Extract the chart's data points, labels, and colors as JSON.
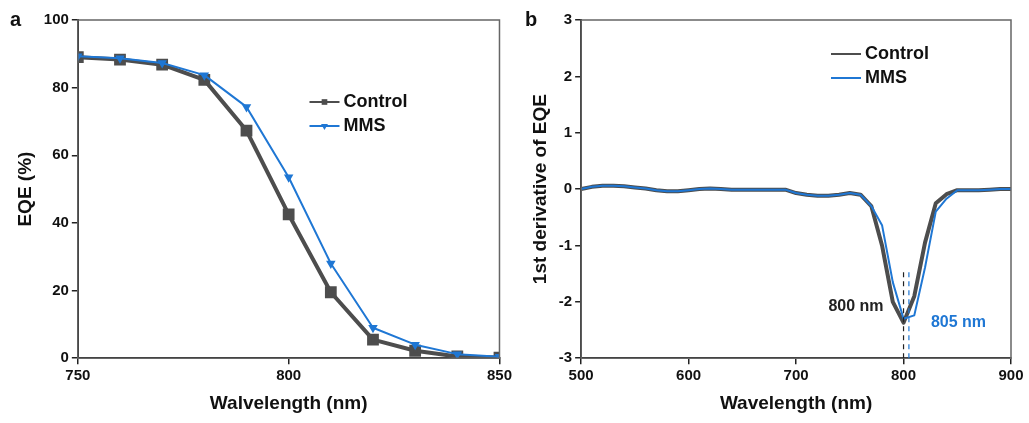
{
  "chart_data": [
    {
      "type": "line",
      "xlabel": "Walvelength (nm)",
      "ylabel": "EQE (%)",
      "annotations": [
        "a"
      ],
      "x": [
        750,
        760,
        770,
        780,
        790,
        800,
        810,
        820,
        830,
        840,
        850
      ],
      "series": [
        {
          "name": "Control",
          "color": "#4d4d4d",
          "marker": "square",
          "values": [
            89,
            88.3,
            86.8,
            82.3,
            67.3,
            42.5,
            19.5,
            5.5,
            2.2,
            0.5,
            0.2
          ]
        },
        {
          "name": "MMS",
          "color": "#1f77d4",
          "marker": "triangle",
          "values": [
            89.3,
            88.7,
            87.3,
            83.7,
            74.3,
            53.5,
            28,
            9,
            4,
            1.2,
            0.4
          ]
        }
      ],
      "xlim": [
        750,
        850
      ],
      "xticks": [
        750,
        800,
        850
      ],
      "ylim": [
        0,
        100
      ],
      "yticks": [
        0,
        20,
        40,
        60,
        80,
        100
      ],
      "grid": false,
      "legend": "top right"
    },
    {
      "type": "line",
      "xlabel": "Wavelength (nm)",
      "ylabel": "1st derivative of EQE",
      "annotations": [
        "b"
      ],
      "x": [
        500,
        510,
        520,
        530,
        540,
        550,
        560,
        570,
        580,
        590,
        600,
        610,
        620,
        630,
        640,
        650,
        660,
        670,
        680,
        690,
        700,
        710,
        720,
        730,
        740,
        750,
        760,
        770,
        780,
        790,
        800,
        810,
        820,
        830,
        840,
        850,
        860,
        870,
        880,
        890,
        900
      ],
      "series": [
        {
          "name": "Control",
          "color": "#4d4d4d",
          "values": [
            0,
            0.04,
            0.06,
            0.06,
            0.05,
            0.03,
            0.01,
            -0.02,
            -0.04,
            -0.04,
            -0.02,
            0,
            0.01,
            0,
            -0.01,
            -0.01,
            -0.01,
            -0.01,
            -0.01,
            -0.01,
            -0.07,
            -0.1,
            -0.12,
            -0.12,
            -0.1,
            -0.07,
            -0.1,
            -0.3,
            -1,
            -2,
            -2.37,
            -1.9,
            -0.95,
            -0.25,
            -0.09,
            -0.02,
            -0.02,
            -0.02,
            -0.01,
            0,
            0
          ]
        },
        {
          "name": "MMS",
          "color": "#1f77d4",
          "values": [
            0,
            0.04,
            0.06,
            0.06,
            0.05,
            0.03,
            0.01,
            -0.02,
            -0.04,
            -0.04,
            -0.02,
            0,
            0.01,
            0,
            -0.01,
            -0.01,
            -0.01,
            -0.01,
            -0.01,
            -0.01,
            -0.07,
            -0.1,
            -0.12,
            -0.12,
            -0.1,
            -0.07,
            -0.1,
            -0.3,
            -0.64,
            -1.65,
            -2.3,
            -2.24,
            -1.39,
            -0.4,
            -0.17,
            -0.02,
            -0.02,
            -0.02,
            -0.01,
            0,
            0
          ]
        }
      ],
      "xlim": [
        500,
        900
      ],
      "xticks": [
        500,
        600,
        700,
        800,
        900
      ],
      "ylim": [
        -3,
        3
      ],
      "yticks": [
        -3,
        -2,
        -1,
        0,
        1,
        2,
        3
      ],
      "grid": false,
      "legend": "top right",
      "ref_lines": [
        {
          "axis": "x",
          "value": 800,
          "label": "800 nm",
          "color": "#222222",
          "line_style": "dashed"
        },
        {
          "axis": "x",
          "value": 805,
          "label": "805 nm",
          "color": "#1f77d4",
          "line_style": "dashed"
        }
      ]
    }
  ]
}
